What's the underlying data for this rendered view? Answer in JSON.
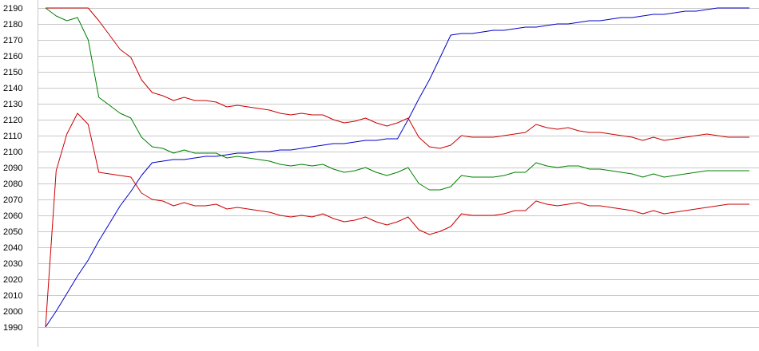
{
  "chart_data": {
    "type": "line",
    "title": "",
    "xlabel": "",
    "ylabel": "",
    "ylim": [
      1990,
      2190
    ],
    "yticks": [
      1990,
      2000,
      2010,
      2020,
      2030,
      2040,
      2050,
      2060,
      2070,
      2080,
      2090,
      2100,
      2110,
      2120,
      2130,
      2140,
      2150,
      2160,
      2170,
      2180,
      2190
    ],
    "grid": "horizontal",
    "legend": "none",
    "x": [
      0,
      1,
      2,
      3,
      4,
      5,
      6,
      7,
      8,
      9,
      10,
      11,
      12,
      13,
      14,
      15,
      16,
      17,
      18,
      19,
      20,
      21,
      22,
      23,
      24,
      25,
      26,
      27,
      28,
      29,
      30,
      31,
      32,
      33,
      34,
      35,
      36,
      37,
      38,
      39,
      40,
      41,
      42,
      43,
      44,
      45,
      46,
      47,
      48,
      49,
      50,
      51,
      52,
      53,
      54,
      55,
      56,
      57,
      58,
      59,
      60,
      61,
      62,
      63,
      64,
      65,
      66
    ],
    "series": [
      {
        "color": "#0000cc",
        "values": [
          1990,
          2000,
          2011,
          2022,
          2032,
          2044,
          2055,
          2066,
          2075,
          2085,
          2093,
          2094,
          2095,
          2095,
          2096,
          2097,
          2097,
          2098,
          2099,
          2099,
          2100,
          2100,
          2101,
          2101,
          2102,
          2103,
          2104,
          2105,
          2105,
          2106,
          2107,
          2107,
          2108,
          2108,
          2120,
          2133,
          2145,
          2159,
          2173,
          2174,
          2174,
          2175,
          2176,
          2176,
          2177,
          2178,
          2178,
          2179,
          2180,
          2180,
          2181,
          2182,
          2182,
          2183,
          2184,
          2184,
          2185,
          2186,
          2186,
          2187,
          2188,
          2188,
          2189,
          2190,
          2190,
          2190,
          2190
        ]
      },
      {
        "color": "#cc0000",
        "values": [
          2190,
          2190,
          2190,
          2190,
          2190,
          2182,
          2173,
          2164,
          2159,
          2145,
          2137,
          2135,
          2132,
          2134,
          2132,
          2132,
          2131,
          2128,
          2129,
          2128,
          2127,
          2126,
          2124,
          2123,
          2124,
          2123,
          2123,
          2120,
          2118,
          2119,
          2121,
          2118,
          2116,
          2118,
          2121,
          2109,
          2103,
          2102,
          2104,
          2110,
          2109,
          2109,
          2109,
          2110,
          2111,
          2112,
          2117,
          2115,
          2114,
          2115,
          2113,
          2112,
          2112,
          2111,
          2110,
          2109,
          2107,
          2109,
          2107,
          2108,
          2109,
          2110,
          2111,
          2110,
          2109,
          2109,
          2109
        ]
      },
      {
        "color": "#008000",
        "values": [
          2190,
          2185,
          2182,
          2184,
          2170,
          2134,
          2129,
          2124,
          2121,
          2109,
          2103,
          2102,
          2099,
          2101,
          2099,
          2099,
          2099,
          2096,
          2097,
          2096,
          2095,
          2094,
          2092,
          2091,
          2092,
          2091,
          2092,
          2089,
          2087,
          2088,
          2090,
          2087,
          2085,
          2087,
          2090,
          2080,
          2076,
          2076,
          2078,
          2085,
          2084,
          2084,
          2084,
          2085,
          2087,
          2087,
          2093,
          2091,
          2090,
          2091,
          2091,
          2089,
          2089,
          2088,
          2087,
          2086,
          2084,
          2086,
          2084,
          2085,
          2086,
          2087,
          2088,
          2088,
          2088,
          2088,
          2088
        ]
      },
      {
        "color": "#cc0000",
        "values": [
          1990,
          2088,
          2111,
          2124,
          2117,
          2087,
          2086,
          2085,
          2084,
          2074,
          2070,
          2069,
          2066,
          2068,
          2066,
          2066,
          2067,
          2064,
          2065,
          2064,
          2063,
          2062,
          2060,
          2059,
          2060,
          2059,
          2061,
          2058,
          2056,
          2057,
          2059,
          2056,
          2054,
          2056,
          2059,
          2051,
          2048,
          2050,
          2053,
          2061,
          2060,
          2060,
          2060,
          2061,
          2063,
          2063,
          2069,
          2067,
          2066,
          2067,
          2068,
          2066,
          2066,
          2065,
          2064,
          2063,
          2061,
          2063,
          2061,
          2062,
          2063,
          2064,
          2065,
          2066,
          2067,
          2067,
          2067
        ]
      }
    ]
  }
}
